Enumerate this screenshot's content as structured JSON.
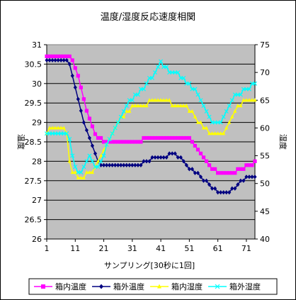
{
  "chart_data": {
    "type": "line",
    "title": "温度/湿度反応速度相関",
    "xlabel": "サンプリング[30秒に1回]",
    "ylabel": "温度",
    "y2label": "湿度",
    "x_ticks": [
      "1",
      "11",
      "21",
      "31",
      "41",
      "51",
      "61",
      "71"
    ],
    "y_ticks": [
      "26",
      "26.5",
      "27",
      "27.5",
      "28",
      "28.5",
      "29",
      "29.5",
      "30",
      "30.5",
      "31"
    ],
    "y2_ticks": [
      "40",
      "45",
      "50",
      "55",
      "60",
      "65",
      "70",
      "75"
    ],
    "xlim": [
      1,
      74
    ],
    "ylim": [
      26,
      31
    ],
    "y2lim": [
      40,
      75
    ],
    "grid": true,
    "legend_position": "bottom",
    "series": [
      {
        "name": "箱内温度",
        "axis": "left",
        "color": "#ff00ff",
        "marker": "square",
        "values": [
          30.7,
          30.7,
          30.7,
          30.7,
          30.7,
          30.7,
          30.7,
          30.7,
          30.7,
          30.6,
          30.4,
          30.2,
          29.9,
          29.6,
          29.3,
          29.1,
          28.9,
          28.7,
          28.6,
          28.6,
          28.5,
          28.5,
          28.5,
          28.5,
          28.5,
          28.5,
          28.5,
          28.5,
          28.5,
          28.5,
          28.5,
          28.5,
          28.5,
          28.5,
          28.6,
          28.6,
          28.6,
          28.6,
          28.6,
          28.6,
          28.6,
          28.6,
          28.6,
          28.6,
          28.6,
          28.6,
          28.6,
          28.6,
          28.6,
          28.6,
          28.6,
          28.5,
          28.4,
          28.3,
          28.2,
          28.1,
          28.0,
          27.9,
          27.8,
          27.8,
          27.7,
          27.7,
          27.7,
          27.7,
          27.7,
          27.7,
          27.7,
          27.8,
          27.8,
          27.8,
          27.9,
          27.9,
          27.9,
          28.0
        ]
      },
      {
        "name": "箱外温度",
        "axis": "left",
        "color": "#000080",
        "marker": "diamond",
        "values": [
          30.6,
          30.6,
          30.6,
          30.6,
          30.6,
          30.6,
          30.6,
          30.6,
          30.5,
          30.2,
          29.9,
          29.6,
          29.3,
          29.0,
          28.8,
          28.6,
          28.4,
          28.2,
          28.0,
          27.9,
          27.9,
          27.9,
          27.9,
          27.9,
          27.9,
          27.9,
          27.9,
          27.9,
          27.9,
          27.9,
          27.9,
          27.9,
          27.9,
          27.9,
          28.0,
          28.0,
          28.0,
          28.1,
          28.1,
          28.1,
          28.1,
          28.1,
          28.1,
          28.2,
          28.2,
          28.2,
          28.1,
          28.1,
          28.0,
          27.9,
          27.8,
          27.8,
          27.7,
          27.7,
          27.6,
          27.5,
          27.5,
          27.4,
          27.3,
          27.3,
          27.2,
          27.2,
          27.2,
          27.2,
          27.2,
          27.3,
          27.3,
          27.4,
          27.5,
          27.5,
          27.6,
          27.6,
          27.6,
          27.6
        ]
      },
      {
        "name": "箱内湿度",
        "axis": "right",
        "color": "#ffff00",
        "marker": "triangle",
        "values": [
          59,
          60,
          60,
          60,
          60,
          60,
          60,
          59,
          54,
          52,
          52,
          51,
          51,
          51,
          52,
          52,
          52,
          53,
          54,
          55,
          56,
          57,
          58,
          59,
          60,
          61,
          62,
          62,
          63,
          63,
          64,
          64,
          64,
          64,
          64,
          64,
          65,
          65,
          65,
          65,
          65,
          65,
          65,
          65,
          64,
          64,
          64,
          64,
          64,
          64,
          63,
          63,
          62,
          61,
          61,
          60,
          60,
          59,
          59,
          59,
          59,
          59,
          59,
          60,
          61,
          62,
          63,
          64,
          64,
          65,
          65,
          65,
          65,
          65
        ]
      },
      {
        "name": "箱外湿度",
        "axis": "right",
        "color": "#00ffff",
        "marker": "x",
        "values": [
          59,
          59,
          59,
          59,
          59,
          59,
          59,
          59,
          58,
          55,
          53,
          52,
          52,
          53,
          54,
          55,
          54,
          53,
          53,
          54,
          55,
          57,
          58,
          59,
          60,
          61,
          62,
          63,
          64,
          65,
          65,
          66,
          66,
          67,
          67,
          68,
          69,
          69,
          70,
          71,
          72,
          71,
          71,
          70,
          70,
          70,
          70,
          69,
          69,
          68,
          68,
          67,
          67,
          66,
          65,
          64,
          63,
          62,
          61,
          61,
          61,
          61,
          62,
          63,
          64,
          65,
          66,
          66,
          66,
          67,
          67,
          67,
          68,
          68
        ]
      }
    ]
  }
}
